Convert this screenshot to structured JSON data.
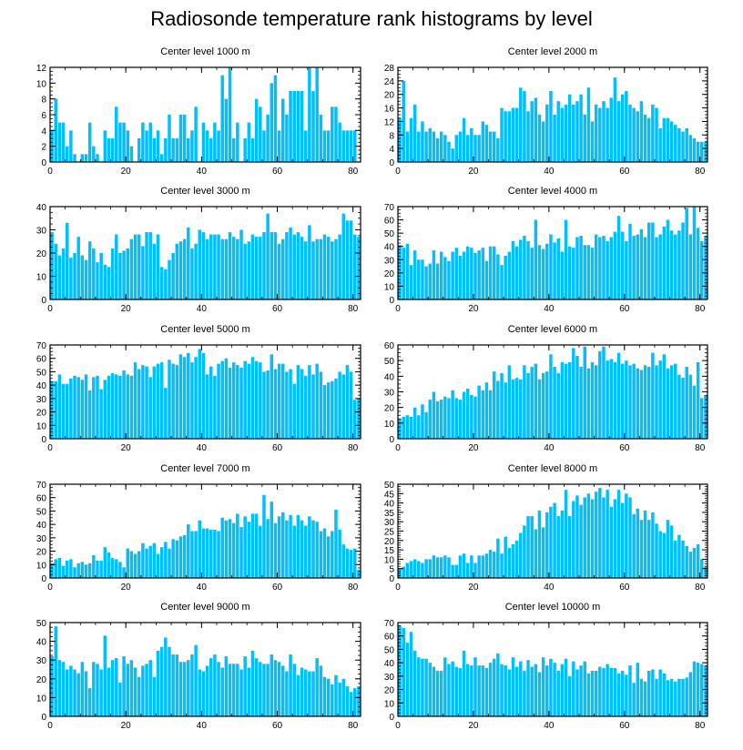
{
  "figure_title": "Radiosonde temperature rank histograms by level",
  "bar_color": "#00BFFF",
  "chart_data": [
    {
      "type": "bar",
      "title": "Center level 1000 m",
      "xlabel": "",
      "ylabel": "",
      "xlim": [
        0,
        82
      ],
      "ylim": [
        0,
        12
      ],
      "x_ticks": [
        0,
        20,
        40,
        60,
        80
      ],
      "y_ticks": [
        0,
        2,
        4,
        6,
        8,
        10,
        12
      ],
      "values": [
        4,
        8,
        5,
        5,
        2,
        4,
        1,
        0,
        1,
        1,
        5,
        2,
        1,
        0,
        4,
        3,
        3,
        7,
        5,
        5,
        4,
        2,
        0,
        3,
        5,
        4,
        5,
        3,
        4,
        1,
        3,
        6,
        3,
        3,
        6,
        6,
        3,
        4,
        7,
        0,
        5,
        4,
        3,
        5,
        4,
        11,
        8,
        12,
        3,
        5,
        0,
        3,
        5,
        3,
        8,
        7,
        4,
        6,
        10,
        11,
        4,
        8,
        6,
        9,
        9,
        9,
        9,
        4,
        12,
        9,
        12,
        6,
        4,
        4,
        7,
        7,
        5,
        4,
        4,
        4,
        4,
        0
      ]
    },
    {
      "type": "bar",
      "title": "Center level 2000 m",
      "xlabel": "",
      "ylabel": "",
      "xlim": [
        0,
        82
      ],
      "ylim": [
        0,
        28
      ],
      "x_ticks": [
        0,
        20,
        40,
        60,
        80
      ],
      "y_ticks": [
        0,
        4,
        8,
        12,
        16,
        20,
        24,
        28
      ],
      "values": [
        13,
        24,
        9,
        13,
        17,
        9,
        12,
        9,
        10,
        9,
        7,
        9,
        8,
        6,
        4,
        8,
        9,
        13,
        8,
        10,
        8,
        8,
        12,
        11,
        9,
        9,
        7,
        16,
        15,
        15,
        16,
        16,
        22,
        21,
        15,
        18,
        19,
        14,
        12,
        17,
        21,
        14,
        18,
        16,
        17,
        20,
        17,
        18,
        20,
        14,
        22,
        12,
        17,
        16,
        18,
        16,
        19,
        25,
        18,
        20,
        21,
        17,
        16,
        15,
        18,
        14,
        13,
        17,
        16,
        10,
        13,
        13,
        12,
        11,
        10,
        9,
        10,
        8,
        7,
        6,
        6,
        6
      ]
    },
    {
      "type": "bar",
      "title": "Center level 3000 m",
      "xlabel": "",
      "ylabel": "",
      "xlim": [
        0,
        82
      ],
      "ylim": [
        0,
        40
      ],
      "x_ticks": [
        0,
        20,
        40,
        60,
        80
      ],
      "y_ticks": [
        0,
        10,
        20,
        30,
        40
      ],
      "values": [
        29,
        24,
        19,
        22,
        33,
        18,
        20,
        27,
        19,
        17,
        25,
        22,
        16,
        20,
        15,
        14,
        22,
        28,
        20,
        21,
        22,
        26,
        28,
        28,
        23,
        29,
        29,
        24,
        28,
        14,
        13,
        17,
        20,
        24,
        25,
        26,
        31,
        22,
        24,
        30,
        29,
        26,
        28,
        28,
        28,
        26,
        26,
        29,
        27,
        26,
        30,
        24,
        25,
        28,
        27,
        27,
        29,
        37,
        29,
        29,
        24,
        26,
        29,
        31,
        28,
        29,
        27,
        25,
        32,
        25,
        26,
        26,
        28,
        27,
        25,
        26,
        28,
        37,
        34,
        34,
        28,
        27
      ]
    },
    {
      "type": "bar",
      "title": "Center level 4000 m",
      "xlabel": "",
      "ylabel": "",
      "xlim": [
        0,
        82
      ],
      "ylim": [
        0,
        70
      ],
      "x_ticks": [
        0,
        20,
        40,
        60,
        80
      ],
      "y_ticks": [
        0,
        10,
        20,
        30,
        40,
        50,
        60,
        70
      ],
      "values": [
        41,
        39,
        42,
        26,
        37,
        30,
        30,
        25,
        27,
        37,
        27,
        36,
        32,
        29,
        36,
        39,
        33,
        36,
        40,
        39,
        35,
        37,
        39,
        29,
        40,
        40,
        34,
        26,
        33,
        36,
        44,
        40,
        45,
        48,
        44,
        39,
        60,
        41,
        38,
        42,
        49,
        43,
        46,
        36,
        60,
        40,
        39,
        47,
        48,
        41,
        41,
        39,
        49,
        47,
        48,
        44,
        47,
        51,
        63,
        51,
        44,
        57,
        48,
        49,
        53,
        47,
        58,
        58,
        47,
        49,
        55,
        60,
        52,
        49,
        52,
        58,
        69,
        49,
        70,
        54,
        44,
        48
      ]
    },
    {
      "type": "bar",
      "title": "Center level 5000 m",
      "xlabel": "",
      "ylabel": "",
      "xlim": [
        0,
        82
      ],
      "ylim": [
        0,
        70
      ],
      "x_ticks": [
        0,
        20,
        40,
        60,
        80
      ],
      "y_ticks": [
        0,
        10,
        20,
        30,
        40,
        50,
        60,
        70
      ],
      "values": [
        43,
        43,
        48,
        41,
        41,
        45,
        47,
        46,
        44,
        48,
        36,
        46,
        47,
        37,
        44,
        47,
        49,
        48,
        47,
        51,
        48,
        47,
        57,
        52,
        55,
        54,
        46,
        54,
        56,
        57,
        38,
        59,
        56,
        55,
        63,
        61,
        64,
        57,
        61,
        67,
        64,
        48,
        54,
        47,
        56,
        58,
        60,
        53,
        57,
        55,
        53,
        58,
        56,
        61,
        58,
        57,
        50,
        51,
        63,
        52,
        56,
        56,
        50,
        52,
        41,
        55,
        52,
        47,
        55,
        48,
        56,
        50,
        40,
        42,
        43,
        45,
        50,
        48,
        55,
        50,
        29,
        30
      ]
    },
    {
      "type": "bar",
      "title": "Center level 6000 m",
      "xlabel": "",
      "ylabel": "",
      "xlim": [
        0,
        82
      ],
      "ylim": [
        0,
        60
      ],
      "x_ticks": [
        0,
        20,
        40,
        60,
        80
      ],
      "y_ticks": [
        0,
        10,
        20,
        30,
        40,
        50,
        60
      ],
      "values": [
        13,
        14,
        15,
        14,
        20,
        15,
        22,
        17,
        25,
        30,
        24,
        25,
        27,
        26,
        31,
        26,
        25,
        30,
        32,
        28,
        27,
        34,
        31,
        36,
        31,
        43,
        37,
        42,
        36,
        47,
        38,
        39,
        38,
        47,
        42,
        46,
        48,
        38,
        42,
        43,
        54,
        46,
        42,
        49,
        48,
        49,
        58,
        53,
        46,
        59,
        45,
        49,
        47,
        56,
        59,
        50,
        51,
        49,
        55,
        48,
        50,
        47,
        48,
        45,
        44,
        47,
        46,
        55,
        47,
        50,
        54,
        45,
        47,
        48,
        41,
        39,
        46,
        41,
        34,
        49,
        26,
        28
      ]
    },
    {
      "type": "bar",
      "title": "Center level 7000 m",
      "xlabel": "",
      "ylabel": "",
      "xlim": [
        0,
        82
      ],
      "ylim": [
        0,
        70
      ],
      "x_ticks": [
        0,
        20,
        40,
        60,
        80
      ],
      "y_ticks": [
        0,
        10,
        20,
        30,
        40,
        50,
        60,
        70
      ],
      "values": [
        11,
        14,
        15,
        9,
        13,
        14,
        8,
        11,
        12,
        10,
        11,
        17,
        13,
        13,
        23,
        19,
        15,
        14,
        12,
        8,
        22,
        20,
        18,
        20,
        26,
        22,
        24,
        26,
        18,
        23,
        27,
        22,
        29,
        28,
        31,
        32,
        40,
        35,
        35,
        43,
        37,
        37,
        36,
        36,
        35,
        45,
        43,
        44,
        41,
        48,
        38,
        46,
        42,
        48,
        48,
        39,
        62,
        44,
        57,
        41,
        46,
        49,
        43,
        47,
        39,
        47,
        43,
        39,
        46,
        43,
        42,
        35,
        37,
        31,
        35,
        51,
        36,
        25,
        22,
        21,
        22,
        6
      ]
    },
    {
      "type": "bar",
      "title": "Center level 8000 m",
      "xlabel": "",
      "ylabel": "",
      "xlim": [
        0,
        82
      ],
      "ylim": [
        0,
        50
      ],
      "x_ticks": [
        0,
        20,
        40,
        60,
        80
      ],
      "y_ticks": [
        0,
        5,
        10,
        15,
        20,
        25,
        30,
        35,
        40,
        45,
        50
      ],
      "values": [
        5,
        6,
        8,
        9,
        10,
        9,
        8,
        10,
        10,
        12,
        11,
        11,
        12,
        11,
        7,
        7,
        12,
        13,
        8,
        12,
        8,
        12,
        12,
        13,
        15,
        14,
        21,
        13,
        22,
        16,
        18,
        20,
        24,
        28,
        33,
        33,
        26,
        36,
        27,
        35,
        38,
        40,
        33,
        36,
        47,
        33,
        41,
        44,
        39,
        43,
        45,
        42,
        46,
        48,
        43,
        47,
        38,
        42,
        47,
        40,
        45,
        43,
        34,
        37,
        31,
        36,
        31,
        35,
        29,
        25,
        24,
        31,
        28,
        20,
        23,
        20,
        17,
        14,
        16,
        18,
        10,
        6
      ]
    },
    {
      "type": "bar",
      "title": "Center level 9000 m",
      "xlabel": "",
      "ylabel": "",
      "xlim": [
        0,
        82
      ],
      "ylim": [
        0,
        50
      ],
      "x_ticks": [
        0,
        20,
        40,
        60,
        80
      ],
      "y_ticks": [
        0,
        10,
        20,
        30,
        40,
        50
      ],
      "values": [
        32,
        48,
        30,
        29,
        25,
        27,
        25,
        23,
        29,
        24,
        15,
        29,
        28,
        25,
        43,
        26,
        30,
        31,
        18,
        32,
        28,
        30,
        26,
        21,
        27,
        28,
        30,
        21,
        35,
        37,
        42,
        37,
        33,
        33,
        29,
        29,
        30,
        33,
        38,
        25,
        24,
        27,
        31,
        33,
        29,
        26,
        32,
        28,
        28,
        28,
        25,
        32,
        26,
        35,
        31,
        29,
        28,
        28,
        33,
        30,
        29,
        27,
        24,
        33,
        28,
        22,
        26,
        25,
        24,
        24,
        31,
        27,
        21,
        20,
        17,
        22,
        18,
        20,
        16,
        13,
        15,
        16
      ]
    },
    {
      "type": "bar",
      "title": "Center level 10000 m",
      "xlabel": "",
      "ylabel": "",
      "xlim": [
        0,
        82
      ],
      "ylim": [
        0,
        70
      ],
      "x_ticks": [
        0,
        20,
        40,
        60,
        80
      ],
      "y_ticks": [
        0,
        10,
        20,
        30,
        40,
        50,
        60,
        70
      ],
      "values": [
        68,
        66,
        55,
        63,
        49,
        44,
        43,
        43,
        40,
        37,
        34,
        34,
        44,
        39,
        41,
        37,
        36,
        49,
        39,
        38,
        44,
        38,
        38,
        36,
        40,
        43,
        47,
        39,
        38,
        35,
        44,
        37,
        41,
        34,
        42,
        37,
        39,
        33,
        44,
        38,
        43,
        40,
        34,
        39,
        43,
        30,
        41,
        35,
        38,
        41,
        32,
        34,
        34,
        37,
        36,
        39,
        36,
        36,
        32,
        34,
        31,
        38,
        25,
        40,
        28,
        26,
        34,
        35,
        28,
        35,
        32,
        27,
        28,
        26,
        28,
        28,
        29,
        33,
        41,
        40,
        39,
        38
      ]
    }
  ]
}
